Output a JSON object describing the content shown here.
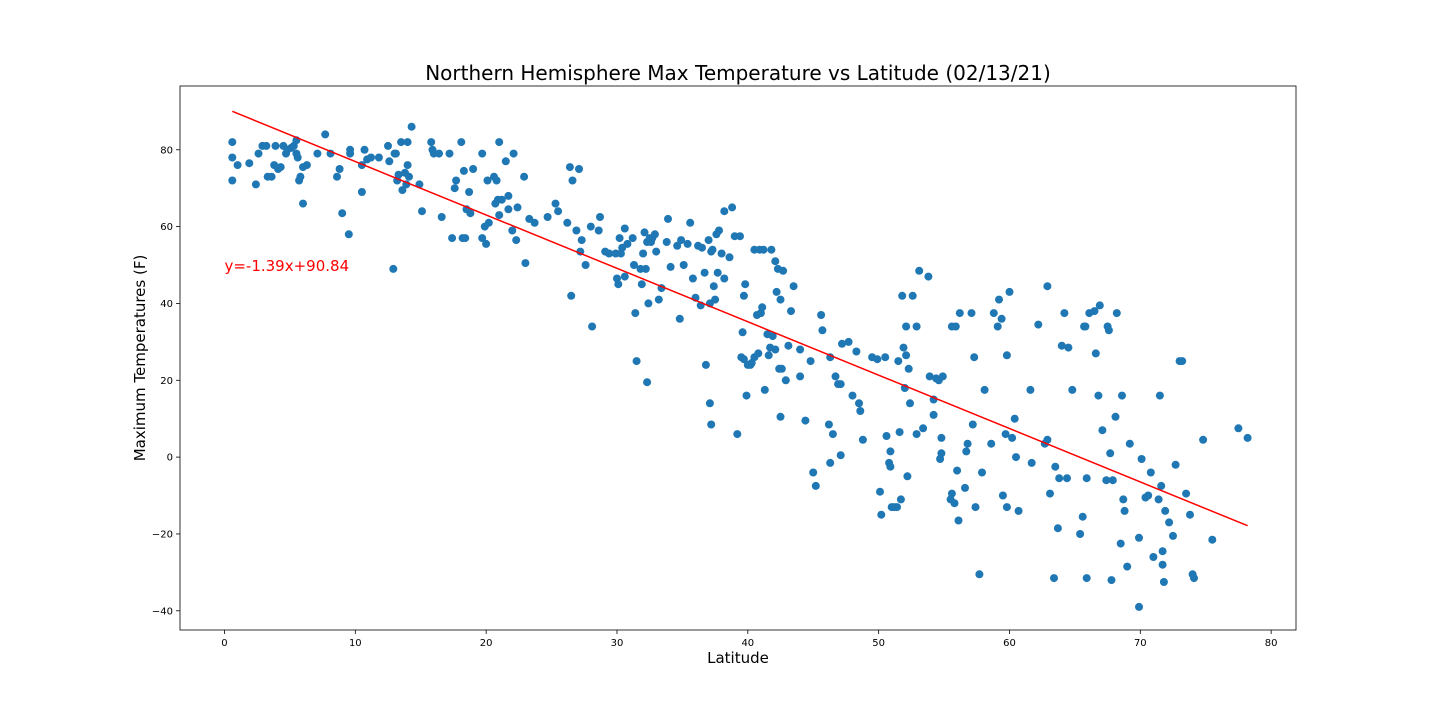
{
  "chart_data": {
    "type": "scatter",
    "title": "Northern Hemisphere Max Temperature vs Latitude (02/13/21)",
    "xlabel": "Latitude",
    "ylabel": "Maximum Temperatures (F)",
    "xlim": [
      -3.4,
      81.9
    ],
    "ylim": [
      -45,
      96.6
    ],
    "x_ticks": [
      0,
      10,
      20,
      30,
      40,
      50,
      60,
      70,
      80
    ],
    "y_ticks": [
      -40,
      -20,
      0,
      20,
      40,
      60,
      80
    ],
    "grid": false,
    "marker_color": "#1f77b4",
    "regression": {
      "equation_label": "y=-1.39x+90.84",
      "slope": -1.39,
      "intercept": 90.84,
      "x_range": [
        0.6,
        78.2
      ],
      "color": "#ff0000",
      "label_position": {
        "x": 0,
        "y": 50
      }
    },
    "points": [
      [
        0.6,
        82
      ],
      [
        0.6,
        78
      ],
      [
        0.6,
        72
      ],
      [
        1,
        76
      ],
      [
        1.9,
        76.5
      ],
      [
        2.4,
        71
      ],
      [
        2.6,
        79
      ],
      [
        2.9,
        81
      ],
      [
        3.2,
        81
      ],
      [
        3.3,
        73
      ],
      [
        3.6,
        73
      ],
      [
        3.8,
        76
      ],
      [
        3.9,
        81
      ],
      [
        4.1,
        75
      ],
      [
        4.3,
        75.5
      ],
      [
        4.5,
        81
      ],
      [
        4.7,
        79
      ],
      [
        4.8,
        80
      ],
      [
        5.1,
        80.5
      ],
      [
        5.3,
        81
      ],
      [
        5.5,
        82.5
      ],
      [
        5.5,
        79
      ],
      [
        5.6,
        78
      ],
      [
        5.7,
        72
      ],
      [
        5.8,
        73
      ],
      [
        6,
        66
      ],
      [
        6,
        75.5
      ],
      [
        6.3,
        76
      ],
      [
        7.1,
        79
      ],
      [
        7.7,
        84
      ],
      [
        8.1,
        79
      ],
      [
        8.6,
        73
      ],
      [
        8.8,
        75
      ],
      [
        9,
        63.5
      ],
      [
        9.5,
        58
      ],
      [
        9.6,
        79
      ],
      [
        9.6,
        80
      ],
      [
        10.5,
        76
      ],
      [
        10.5,
        69
      ],
      [
        10.7,
        80
      ],
      [
        10.9,
        77.5
      ],
      [
        11.2,
        78
      ],
      [
        11.8,
        78
      ],
      [
        12.5,
        81
      ],
      [
        12.6,
        77
      ],
      [
        12.9,
        49
      ],
      [
        13,
        79
      ],
      [
        13.1,
        79
      ],
      [
        13.2,
        72
      ],
      [
        13.3,
        73.5
      ],
      [
        13.5,
        82
      ],
      [
        13.6,
        69.5
      ],
      [
        13.8,
        74
      ],
      [
        13.9,
        71
      ],
      [
        14,
        76
      ],
      [
        14,
        82
      ],
      [
        14.1,
        73
      ],
      [
        14.3,
        86
      ],
      [
        14.9,
        71
      ],
      [
        15.1,
        64
      ],
      [
        15.8,
        82
      ],
      [
        15.9,
        80
      ],
      [
        16,
        79
      ],
      [
        16.4,
        79
      ],
      [
        16.6,
        62.5
      ],
      [
        17.2,
        79
      ],
      [
        17.4,
        57
      ],
      [
        17.6,
        70
      ],
      [
        17.7,
        72
      ],
      [
        18.1,
        82
      ],
      [
        18.2,
        57
      ],
      [
        18.3,
        74.5
      ],
      [
        18.4,
        57
      ],
      [
        18.5,
        64.5
      ],
      [
        18.7,
        69
      ],
      [
        18.8,
        63.5
      ],
      [
        19,
        75
      ],
      [
        19.7,
        79
      ],
      [
        19.7,
        57
      ],
      [
        19.9,
        60
      ],
      [
        20,
        55.5
      ],
      [
        20.1,
        72
      ],
      [
        20.2,
        61
      ],
      [
        20.6,
        73
      ],
      [
        20.7,
        66
      ],
      [
        20.8,
        72
      ],
      [
        20.9,
        67
      ],
      [
        21,
        63
      ],
      [
        21,
        82
      ],
      [
        21.2,
        67
      ],
      [
        21.5,
        77
      ],
      [
        21.7,
        64.5
      ],
      [
        21.7,
        68
      ],
      [
        22,
        59
      ],
      [
        22.1,
        79
      ],
      [
        22.3,
        56.5
      ],
      [
        22.4,
        65
      ],
      [
        22.9,
        73
      ],
      [
        23,
        50.5
      ],
      [
        23.3,
        62
      ],
      [
        23.7,
        61
      ],
      [
        24.7,
        62.5
      ],
      [
        25.3,
        66
      ],
      [
        25.5,
        64
      ],
      [
        26.2,
        61
      ],
      [
        26.4,
        75.5
      ],
      [
        26.5,
        42
      ],
      [
        26.6,
        72
      ],
      [
        26.9,
        59
      ],
      [
        27.1,
        75
      ],
      [
        27.2,
        53.5
      ],
      [
        27.3,
        56.5
      ],
      [
        27.6,
        50
      ],
      [
        28,
        60
      ],
      [
        28.1,
        34
      ],
      [
        28.6,
        59
      ],
      [
        28.7,
        62.5
      ],
      [
        29.1,
        53.5
      ],
      [
        29.4,
        53
      ],
      [
        29.9,
        53
      ],
      [
        30,
        46.5
      ],
      [
        30.1,
        45
      ],
      [
        30.2,
        57
      ],
      [
        30.3,
        53
      ],
      [
        30.4,
        54.5
      ],
      [
        30.6,
        59.5
      ],
      [
        30.6,
        47
      ],
      [
        30.8,
        55.5
      ],
      [
        31.2,
        57
      ],
      [
        31.3,
        50
      ],
      [
        31.4,
        37.5
      ],
      [
        31.5,
        25
      ],
      [
        31.8,
        49
      ],
      [
        31.9,
        45
      ],
      [
        32,
        53
      ],
      [
        32.1,
        58.5
      ],
      [
        32.2,
        49
      ],
      [
        32.3,
        56
      ],
      [
        32.3,
        19.5
      ],
      [
        32.4,
        40
      ],
      [
        32.5,
        57
      ],
      [
        32.6,
        56
      ],
      [
        32.7,
        57
      ],
      [
        32.9,
        58
      ],
      [
        33,
        53.5
      ],
      [
        33.2,
        41
      ],
      [
        33.4,
        44
      ],
      [
        33.8,
        56
      ],
      [
        33.9,
        62
      ],
      [
        34.1,
        49.5
      ],
      [
        34.6,
        55
      ],
      [
        34.8,
        36
      ],
      [
        34.9,
        56.5
      ],
      [
        35.1,
        50
      ],
      [
        35.4,
        55.5
      ],
      [
        35.6,
        61
      ],
      [
        35.8,
        46.5
      ],
      [
        36,
        41.5
      ],
      [
        36.2,
        55
      ],
      [
        36.4,
        39.5
      ],
      [
        36.5,
        54.5
      ],
      [
        36.7,
        48
      ],
      [
        36.8,
        24
      ],
      [
        37,
        56.5
      ],
      [
        37.1,
        40
      ],
      [
        37.1,
        14
      ],
      [
        37.2,
        53.5
      ],
      [
        37.2,
        8.5
      ],
      [
        37.3,
        54
      ],
      [
        37.4,
        44.5
      ],
      [
        37.5,
        41
      ],
      [
        37.6,
        58
      ],
      [
        37.7,
        48
      ],
      [
        37.8,
        59
      ],
      [
        38,
        53
      ],
      [
        38.2,
        64
      ],
      [
        38.2,
        46.5
      ],
      [
        38.6,
        52
      ],
      [
        38.8,
        65
      ],
      [
        39,
        57.5
      ],
      [
        39.2,
        6
      ],
      [
        39.4,
        57.5
      ],
      [
        39.5,
        26
      ],
      [
        39.6,
        32.5
      ],
      [
        39.7,
        25.5
      ],
      [
        39.7,
        42
      ],
      [
        39.8,
        45
      ],
      [
        39.9,
        16
      ],
      [
        40,
        24
      ],
      [
        40.2,
        24
      ],
      [
        40.3,
        24.5
      ],
      [
        40.5,
        54
      ],
      [
        40.5,
        26
      ],
      [
        40.7,
        37
      ],
      [
        40.8,
        27
      ],
      [
        40.9,
        54
      ],
      [
        41,
        37.5
      ],
      [
        41.1,
        39
      ],
      [
        41.2,
        54
      ],
      [
        41.3,
        17.5
      ],
      [
        41.5,
        32
      ],
      [
        41.6,
        26.5
      ],
      [
        41.7,
        28.5
      ],
      [
        41.8,
        54
      ],
      [
        41.9,
        31.5
      ],
      [
        42.1,
        51
      ],
      [
        42.1,
        28
      ],
      [
        42.2,
        43
      ],
      [
        42.3,
        49
      ],
      [
        42.4,
        23
      ],
      [
        42.5,
        10.5
      ],
      [
        42.5,
        41
      ],
      [
        42.6,
        23
      ],
      [
        42.7,
        48.5
      ],
      [
        42.9,
        20
      ],
      [
        43.1,
        29
      ],
      [
        43.3,
        38
      ],
      [
        43.5,
        44.5
      ],
      [
        44,
        28
      ],
      [
        44,
        21
      ],
      [
        44.4,
        9.5
      ],
      [
        44.8,
        25
      ],
      [
        45,
        -4
      ],
      [
        45.2,
        -7.5
      ],
      [
        45.6,
        37
      ],
      [
        45.7,
        33
      ],
      [
        46.2,
        8.5
      ],
      [
        46.3,
        -1.5
      ],
      [
        46.3,
        26
      ],
      [
        46.5,
        6
      ],
      [
        46.7,
        21
      ],
      [
        46.9,
        19
      ],
      [
        47.1,
        0.5
      ],
      [
        47.1,
        19
      ],
      [
        47.2,
        29.5
      ],
      [
        47.7,
        30
      ],
      [
        48,
        16
      ],
      [
        48.3,
        27.5
      ],
      [
        48.5,
        14
      ],
      [
        48.6,
        12
      ],
      [
        48.8,
        4.5
      ],
      [
        49.5,
        26
      ],
      [
        49.9,
        25.5
      ],
      [
        50.1,
        -9
      ],
      [
        50.2,
        -15
      ],
      [
        50.5,
        26
      ],
      [
        50.6,
        5.5
      ],
      [
        50.8,
        -1.5
      ],
      [
        50.9,
        -2.5
      ],
      [
        50.9,
        1.5
      ],
      [
        51,
        -13
      ],
      [
        51.2,
        -13
      ],
      [
        51.4,
        -13
      ],
      [
        51.5,
        25
      ],
      [
        51.6,
        6.5
      ],
      [
        51.7,
        -11
      ],
      [
        51.8,
        42
      ],
      [
        51.9,
        28.5
      ],
      [
        52,
        18
      ],
      [
        52.1,
        26.5
      ],
      [
        52.1,
        34
      ],
      [
        52.2,
        -5
      ],
      [
        52.3,
        23
      ],
      [
        52.4,
        14
      ],
      [
        52.6,
        42
      ],
      [
        52.9,
        6
      ],
      [
        52.9,
        34
      ],
      [
        53.1,
        48.5
      ],
      [
        53.4,
        7.5
      ],
      [
        53.8,
        47
      ],
      [
        53.9,
        21
      ],
      [
        54.2,
        11
      ],
      [
        54.2,
        15
      ],
      [
        54.4,
        20.5
      ],
      [
        54.6,
        20
      ],
      [
        54.7,
        -0.5
      ],
      [
        54.8,
        1
      ],
      [
        54.8,
        5
      ],
      [
        54.9,
        21
      ],
      [
        55.5,
        -11
      ],
      [
        55.6,
        34
      ],
      [
        55.6,
        -9.5
      ],
      [
        55.8,
        -12
      ],
      [
        55.9,
        34
      ],
      [
        56,
        -3.5
      ],
      [
        56.1,
        -16.5
      ],
      [
        56.2,
        37.5
      ],
      [
        56.6,
        -8
      ],
      [
        56.7,
        1.5
      ],
      [
        56.8,
        3.5
      ],
      [
        57.1,
        37.5
      ],
      [
        57.2,
        8.5
      ],
      [
        57.3,
        26
      ],
      [
        57.4,
        -13
      ],
      [
        57.7,
        -30.5
      ],
      [
        57.9,
        -4
      ],
      [
        58.1,
        17.5
      ],
      [
        58.6,
        3.5
      ],
      [
        58.8,
        37.5
      ],
      [
        59.1,
        34
      ],
      [
        59.2,
        41
      ],
      [
        59.4,
        36
      ],
      [
        59.5,
        -10
      ],
      [
        59.7,
        6
      ],
      [
        59.8,
        26.5
      ],
      [
        59.8,
        -13
      ],
      [
        60,
        43
      ],
      [
        60.2,
        5
      ],
      [
        60.4,
        10
      ],
      [
        60.5,
        0
      ],
      [
        60.7,
        -14
      ],
      [
        61.6,
        17.5
      ],
      [
        61.7,
        -1.5
      ],
      [
        62.2,
        34.5
      ],
      [
        62.7,
        3.5
      ],
      [
        62.9,
        4.5
      ],
      [
        62.9,
        44.5
      ],
      [
        63.1,
        -9.5
      ],
      [
        63.4,
        -31.5
      ],
      [
        63.5,
        -2.5
      ],
      [
        63.7,
        -18.5
      ],
      [
        63.8,
        -5.5
      ],
      [
        64,
        29
      ],
      [
        64.2,
        37.5
      ],
      [
        64.4,
        -5.5
      ],
      [
        64.5,
        28.5
      ],
      [
        64.8,
        17.5
      ],
      [
        65.4,
        -20
      ],
      [
        65.6,
        -15.5
      ],
      [
        65.7,
        34
      ],
      [
        65.8,
        34
      ],
      [
        65.9,
        -31.5
      ],
      [
        65.9,
        -5.5
      ],
      [
        66.1,
        37.5
      ],
      [
        66.5,
        38
      ],
      [
        66.6,
        27
      ],
      [
        66.8,
        16
      ],
      [
        66.9,
        39.5
      ],
      [
        67.1,
        7
      ],
      [
        67.4,
        -6
      ],
      [
        67.5,
        34
      ],
      [
        67.6,
        33
      ],
      [
        67.7,
        1
      ],
      [
        67.8,
        -32
      ],
      [
        67.9,
        -6
      ],
      [
        68.1,
        10.5
      ],
      [
        68.2,
        37.5
      ],
      [
        68.5,
        -22.5
      ],
      [
        68.6,
        16
      ],
      [
        68.7,
        -11
      ],
      [
        68.8,
        -14
      ],
      [
        69,
        -28.5
      ],
      [
        69.2,
        3.5
      ],
      [
        69.9,
        -21
      ],
      [
        69.9,
        -39
      ],
      [
        70.1,
        -0.5
      ],
      [
        70.4,
        -10.5
      ],
      [
        70.6,
        -10
      ],
      [
        70.8,
        -4
      ],
      [
        71,
        -26
      ],
      [
        71.4,
        -11
      ],
      [
        71.5,
        16
      ],
      [
        71.6,
        -7.5
      ],
      [
        71.7,
        -24.5
      ],
      [
        71.7,
        -28
      ],
      [
        71.8,
        -32.5
      ],
      [
        71.9,
        -14
      ],
      [
        72.2,
        -17
      ],
      [
        72.5,
        -20.5
      ],
      [
        72.7,
        -2
      ],
      [
        73,
        25
      ],
      [
        73.2,
        25
      ],
      [
        73.5,
        -9.5
      ],
      [
        73.8,
        -15
      ],
      [
        74,
        -30.5
      ],
      [
        74.1,
        -31.5
      ],
      [
        74.8,
        4.5
      ],
      [
        75.5,
        -21.5
      ],
      [
        77.5,
        7.5
      ],
      [
        78.2,
        5
      ]
    ]
  }
}
